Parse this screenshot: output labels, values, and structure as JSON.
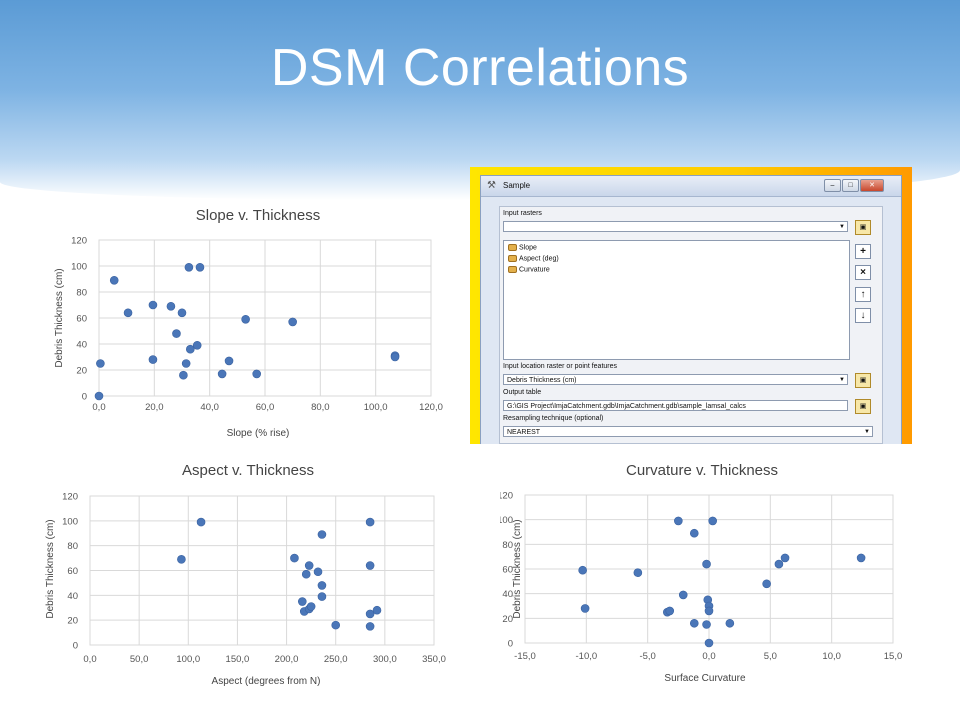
{
  "slide": {
    "title": "DSM Correlations"
  },
  "colors": {
    "accent": "#4a76b8",
    "header": "#5b9bd5"
  },
  "dialog": {
    "title": "Sample",
    "input_rasters_label": "Input rasters",
    "items": [
      "Slope",
      "Aspect (deg)",
      "Curvature"
    ],
    "points_label": "Input location raster or point features",
    "points_value": "Debris Thickness (cm)",
    "output_label": "Output table",
    "output_value": "G:\\GIS Project\\ImjaCatchment.gdb\\ImjaCatchment.gdb\\sample_lamsal_calcs",
    "resampling_label": "Resampling technique (optional)",
    "resampling_value": "NEAREST",
    "icons": [
      "hammer-icon",
      "minimize-icon",
      "maximize-icon",
      "close-icon",
      "folder-icon",
      "add-icon",
      "remove-icon",
      "up-icon",
      "down-icon"
    ]
  },
  "chart_data": [
    {
      "type": "scatter",
      "title": "Slope v. Thickness",
      "xlabel": "Slope (% rise)",
      "ylabel": "Debris Thickness (cm)",
      "xlim": [
        0,
        120
      ],
      "ylim": [
        0,
        120
      ],
      "xticks": [
        "0,0",
        "20,0",
        "40,0",
        "60,0",
        "80,0",
        "100,0",
        "120,0"
      ],
      "yticks": [
        "0",
        "20",
        "40",
        "60",
        "80",
        "100",
        "120"
      ],
      "grid": true,
      "legend": "none",
      "points": [
        [
          0,
          0
        ],
        [
          0.5,
          25
        ],
        [
          5.5,
          89
        ],
        [
          10.5,
          64
        ],
        [
          19.5,
          70
        ],
        [
          19.5,
          28
        ],
        [
          26,
          69
        ],
        [
          28,
          48
        ],
        [
          30,
          64
        ],
        [
          30.5,
          16
        ],
        [
          31.5,
          25
        ],
        [
          32.5,
          99
        ],
        [
          33,
          36
        ],
        [
          35.5,
          39
        ],
        [
          36.5,
          99
        ],
        [
          44.5,
          17
        ],
        [
          47,
          27
        ],
        [
          53,
          59
        ],
        [
          57,
          17
        ],
        [
          70,
          57
        ],
        [
          107,
          31
        ],
        [
          107,
          30
        ]
      ]
    },
    {
      "type": "scatter",
      "title": "Aspect v. Thickness",
      "xlabel": "Aspect (degrees from N)",
      "ylabel": "Debris Thickness (cm)",
      "xlim": [
        0,
        350
      ],
      "ylim": [
        0,
        120
      ],
      "xticks": [
        "0,0",
        "50,0",
        "100,0",
        "150,0",
        "200,0",
        "250,0",
        "300,0",
        "350,0"
      ],
      "yticks": [
        "0",
        "20",
        "40",
        "60",
        "80",
        "100",
        "120"
      ],
      "grid": true,
      "legend": "none",
      "points": [
        [
          93,
          69
        ],
        [
          113,
          99
        ],
        [
          208,
          70
        ],
        [
          216,
          35
        ],
        [
          218,
          27
        ],
        [
          220,
          57
        ],
        [
          223,
          64
        ],
        [
          223,
          29
        ],
        [
          225,
          31
        ],
        [
          232,
          59
        ],
        [
          236,
          89
        ],
        [
          236,
          48
        ],
        [
          236,
          39
        ],
        [
          250,
          16
        ],
        [
          285,
          99
        ],
        [
          285,
          64
        ],
        [
          285,
          25
        ],
        [
          285,
          15
        ],
        [
          292,
          28
        ]
      ]
    },
    {
      "type": "scatter",
      "title": "Curvature v. Thickness",
      "xlabel": "Surface Curvature",
      "ylabel": "Debris Thickness (cm)",
      "xlim": [
        -15,
        15
      ],
      "ylim": [
        0,
        120
      ],
      "xticks": [
        "-15,0",
        "-10,0",
        "-5,0",
        "0,0",
        "5,0",
        "10,0",
        "15,0"
      ],
      "yticks": [
        "0",
        "20",
        "40",
        "60",
        "80",
        "100",
        "120"
      ],
      "grid": true,
      "legend": "none",
      "points": [
        [
          -10.3,
          59
        ],
        [
          -10.1,
          28
        ],
        [
          -5.8,
          57
        ],
        [
          -3.4,
          25
        ],
        [
          -3.2,
          26
        ],
        [
          -2.5,
          99
        ],
        [
          -2.1,
          39
        ],
        [
          -1.2,
          89
        ],
        [
          -1.2,
          16
        ],
        [
          -0.2,
          64
        ],
        [
          -0.1,
          35
        ],
        [
          0,
          30
        ],
        [
          0,
          26
        ],
        [
          -0.2,
          15
        ],
        [
          0.3,
          99
        ],
        [
          0,
          0
        ],
        [
          1.7,
          16
        ],
        [
          4.7,
          48
        ],
        [
          5.7,
          64
        ],
        [
          6.2,
          69
        ],
        [
          12.4,
          69
        ]
      ]
    }
  ]
}
